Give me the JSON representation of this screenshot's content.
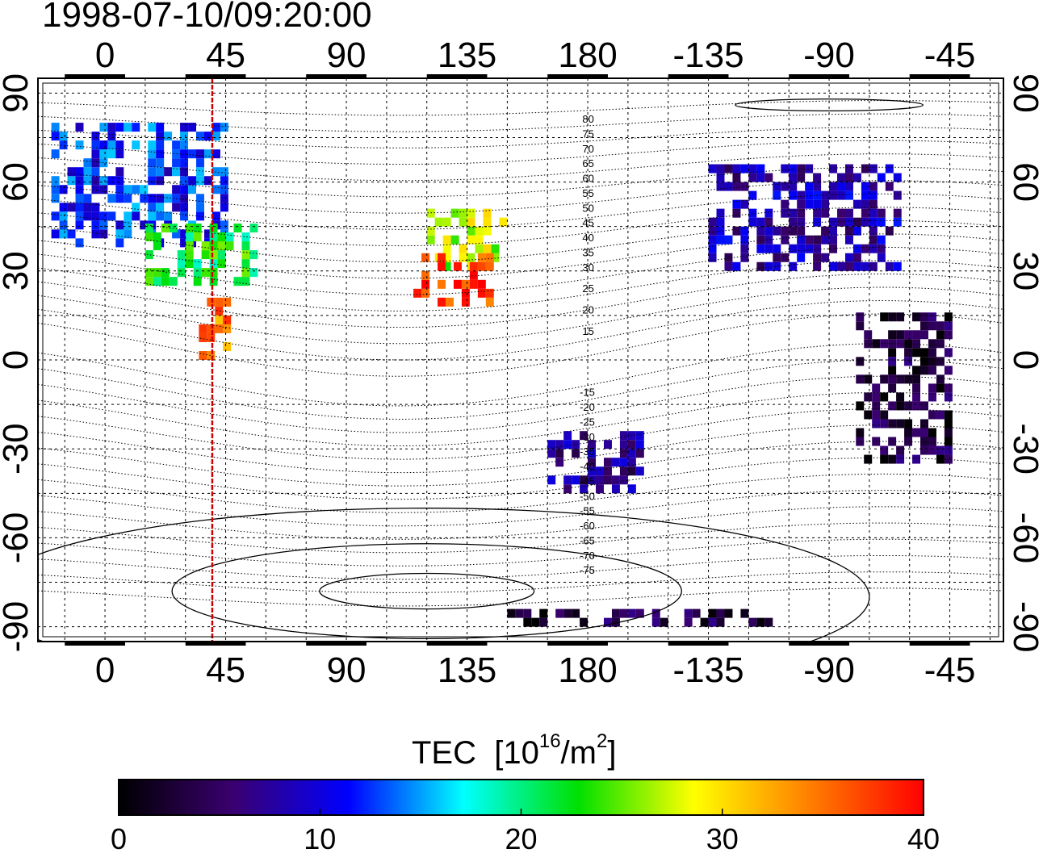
{
  "title": "1998-07-10/09:20:00",
  "colorbar": {
    "label": "TEC",
    "unit_prefix": "[10",
    "unit_exp1": "16",
    "unit_mid": "/m",
    "unit_exp2": "2",
    "unit_suffix": "]",
    "ticks": [
      "0",
      "10",
      "20",
      "30",
      "40"
    ],
    "range": [
      0,
      40
    ],
    "stops": [
      "#000000",
      "#3a0070",
      "#0000ff",
      "#00ffff",
      "#00e000",
      "#ffff00",
      "#ff8000",
      "#ff0000"
    ]
  },
  "map": {
    "lon_ticks": [
      "0",
      "45",
      "90",
      "135",
      "180",
      "-135",
      "-90",
      "-45"
    ],
    "lat_ticks": [
      "90",
      "60",
      "30",
      "0",
      "-30",
      "-60",
      "-90"
    ],
    "marker_longitude": 40,
    "marker_color": "#cc0000",
    "contour_labels_north": [
      "80",
      "75",
      "70",
      "65",
      "60",
      "55",
      "50",
      "45",
      "40",
      "35",
      "30",
      "25",
      "20",
      "15"
    ],
    "contour_labels_south": [
      "-15",
      "-20",
      "-25",
      "-30",
      "-35",
      "-40",
      "-45",
      "-50",
      "-55",
      "-60",
      "-65",
      "-70",
      "-75"
    ]
  },
  "chart_data": {
    "type": "heatmap",
    "title": "1998-07-10/09:20:00",
    "xlabel": "",
    "ylabel": "",
    "xlim": [
      -25,
      335
    ],
    "ylim": [
      -95,
      95
    ],
    "colorbar_label": "TEC  [10^16/m^2]",
    "value_range": [
      0,
      40
    ],
    "regions": [
      {
        "lon": [
          -20,
          45
        ],
        "lat": [
          38,
          80
        ],
        "tec": 12
      },
      {
        "lon": [
          15,
          55
        ],
        "lat": [
          25,
          45
        ],
        "tec": 22
      },
      {
        "lon": [
          35,
          45
        ],
        "lat": [
          0,
          20
        ],
        "tec": 34
      },
      {
        "lon": [
          120,
          150
        ],
        "lat": [
          30,
          50
        ],
        "tec": 27
      },
      {
        "lon": [
          115,
          145
        ],
        "lat": [
          18,
          35
        ],
        "tec": 38
      },
      {
        "lon": [
          225,
          295
        ],
        "lat": [
          30,
          65
        ],
        "tec": 8
      },
      {
        "lon": [
          150,
          250
        ],
        "lat": [
          -90,
          -85
        ],
        "tec": 3
      },
      {
        "lon": [
          280,
          315
        ],
        "lat": [
          -35,
          15
        ],
        "tec": 3
      },
      {
        "lon": [
          165,
          200
        ],
        "lat": [
          -45,
          -25
        ],
        "tec": 7
      }
    ]
  }
}
